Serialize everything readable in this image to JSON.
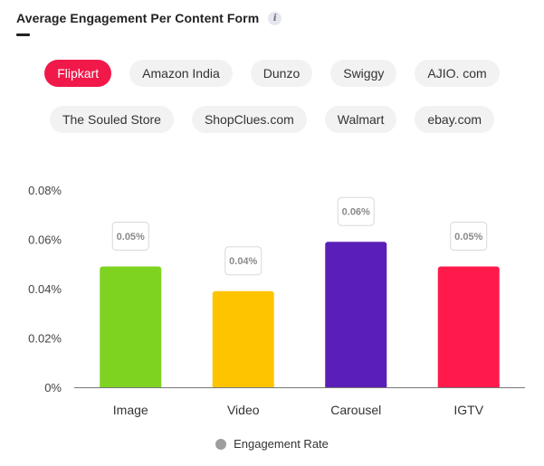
{
  "header": {
    "title": "Average Engagement Per Content Form",
    "info_icon": "info-icon"
  },
  "platforms": {
    "selected": "Flipkart",
    "rows": [
      [
        "Flipkart",
        "Amazon India",
        "Dunzo",
        "Swiggy",
        "AJIO. com"
      ],
      [
        "The Souled Store",
        "ShopClues.com",
        "Walmart",
        "ebay.com"
      ]
    ]
  },
  "chart_data": {
    "type": "bar",
    "categories": [
      "Image",
      "Video",
      "Carousel",
      "IGTV"
    ],
    "series": [
      {
        "name": "Engagement Rate",
        "values": [
          0.049,
          0.039,
          0.059,
          0.049
        ]
      }
    ],
    "data_labels": [
      "0.05%",
      "0.04%",
      "0.06%",
      "0.05%"
    ],
    "bar_colors": [
      "#7ed321",
      "#ffc400",
      "#5a1fb8",
      "#ff1a4b"
    ],
    "ylim": [
      0,
      0.08
    ],
    "yticks": [
      "0%",
      "0.02%",
      "0.04%",
      "0.06%",
      "0.08%"
    ],
    "ytick_values": [
      0,
      0.02,
      0.04,
      0.06,
      0.08
    ],
    "grid": false,
    "legend": "bottom"
  },
  "legend": {
    "label": "Engagement Rate",
    "color": "#9e9e9e"
  }
}
